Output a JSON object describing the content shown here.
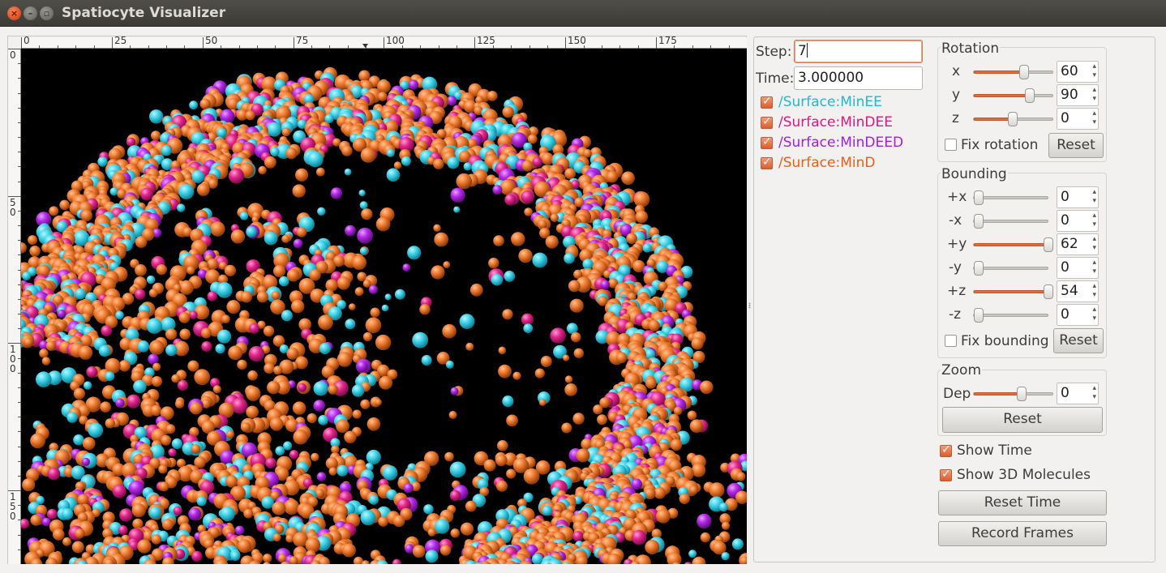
{
  "window": {
    "title": "Spatiocyte Visualizer"
  },
  "ruler": {
    "x_ticks": [
      "0",
      "25",
      "50",
      "75",
      "100",
      "125",
      "150",
      "175"
    ],
    "y_ticks": [
      "0",
      "50",
      "100",
      "150"
    ]
  },
  "species": [
    {
      "label": "/Surface:MinEE",
      "color": "#1fb8d6",
      "checked": true
    },
    {
      "label": "/Surface:MinDEE",
      "color": "#e0167f",
      "checked": true
    },
    {
      "label": "/Surface:MinDEED",
      "color": "#a41fd8",
      "checked": true
    },
    {
      "label": "/Surface:MinD",
      "color": "#ee5d16",
      "checked": true
    }
  ],
  "step": {
    "label": "Step:",
    "value": "7"
  },
  "time": {
    "label": "Time:",
    "value": "3.000000"
  },
  "rotation": {
    "title": "Rotation",
    "rows": [
      {
        "axis": "x",
        "value": "60"
      },
      {
        "axis": "y",
        "value": "90"
      },
      {
        "axis": "z",
        "value": "0"
      }
    ],
    "fix_label": "Fix rotation",
    "reset_label": "Reset"
  },
  "bounding": {
    "title": "Bounding",
    "rows": [
      {
        "axis": "+x",
        "value": "0"
      },
      {
        "axis": "-x",
        "value": "0"
      },
      {
        "axis": "+y",
        "value": "62"
      },
      {
        "axis": "-y",
        "value": "0"
      },
      {
        "axis": "+z",
        "value": "54"
      },
      {
        "axis": "-z",
        "value": "0"
      }
    ],
    "fix_label": "Fix bounding",
    "reset_label": "Reset"
  },
  "zoom": {
    "title": "Zoom",
    "depth_label": "Dep",
    "value": "0",
    "reset_label": "Reset"
  },
  "options": [
    {
      "label": "Show Time",
      "checked": true
    },
    {
      "label": "Show 3D Molecules",
      "checked": true
    }
  ],
  "buttons": {
    "reset_time": "Reset Time",
    "record_frames": "Record Frames"
  },
  "colors": {
    "cyan": "#3fd3ea",
    "magenta": "#e2248a",
    "purple": "#b526e8",
    "orange": "#f07a2e"
  }
}
